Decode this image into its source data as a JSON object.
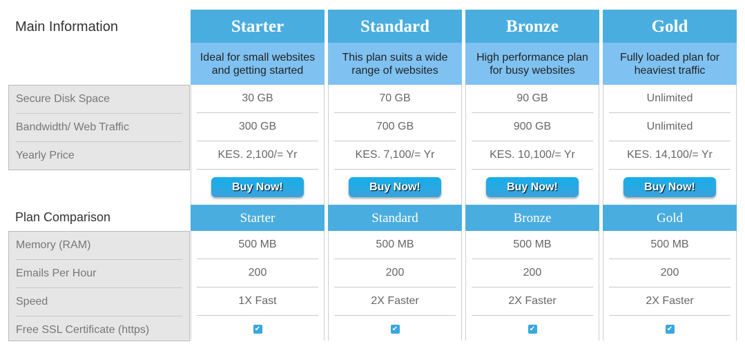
{
  "sections": {
    "main": "Main Information",
    "comparison": "Plan Comparison"
  },
  "main_labels": [
    "Secure Disk Space",
    "Bandwidth/ Web Traffic",
    "Yearly Price"
  ],
  "comparison_labels": [
    "Memory (RAM)",
    "Emails Per Hour",
    "Speed",
    "Free SSL Certificate (https)"
  ],
  "buy_label": "Buy Now!",
  "plans": [
    {
      "name": "Starter",
      "desc": "Ideal for small websites and getting started",
      "main": [
        "30 GB",
        "300 GB",
        "KES. 2,100/= Yr"
      ],
      "comp": [
        "500 MB",
        "200",
        "1X Fast"
      ],
      "ssl": true
    },
    {
      "name": "Standard",
      "desc": "This plan suits a wide range of websites",
      "main": [
        "70 GB",
        "700 GB",
        "KES. 7,100/= Yr"
      ],
      "comp": [
        "500 MB",
        "200",
        "2X Faster"
      ],
      "ssl": true
    },
    {
      "name": "Bronze",
      "desc": "High performance plan for busy websites",
      "main": [
        "90 GB",
        "900 GB",
        "KES. 10,100/= Yr"
      ],
      "comp": [
        "500 MB",
        "200",
        "2X Faster"
      ],
      "ssl": true
    },
    {
      "name": "Gold",
      "desc": "Fully loaded plan for heaviest traffic",
      "main": [
        "Unlimited",
        "Unlimited",
        "KES. 14,100/= Yr"
      ],
      "comp": [
        "500 MB",
        "200",
        "2X Faster"
      ],
      "ssl": true
    }
  ],
  "colors": {
    "header": "#4aaddf",
    "description": "#7fc2f2",
    "label_bg": "#e6e6e6"
  }
}
